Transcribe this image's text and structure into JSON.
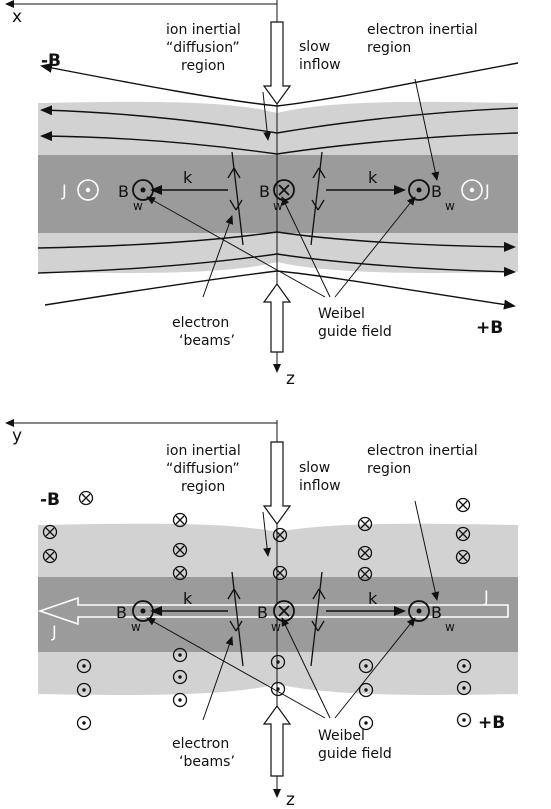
{
  "panel_top": {
    "axis_vertical": "x",
    "axis_down": "z",
    "ion_region": [
      "ion inertial",
      "“diffusion”",
      "region"
    ],
    "inflow": [
      "slow",
      "inflow"
    ],
    "electron_region": [
      "electron inertial",
      "region"
    ],
    "minus_b": "-B",
    "plus_b": "+B",
    "current": "J",
    "wavevector": "k",
    "b_main": "B",
    "b_sub": "w",
    "beams": [
      "electron",
      "‘beams’"
    ],
    "weibel": [
      "Weibel",
      "guide field"
    ]
  },
  "panel_bottom": {
    "axis_vertical": "y",
    "axis_down": "z",
    "ion_region": [
      "ion inertial",
      "“diffusion”",
      "region"
    ],
    "inflow": [
      "slow",
      "inflow"
    ],
    "electron_region": [
      "electron inertial",
      "region"
    ],
    "minus_b": "-B",
    "plus_b": "+B",
    "current": "J",
    "wavevector": "k",
    "b_main": "B",
    "b_sub": "w",
    "beams": [
      "electron",
      "‘beams’"
    ],
    "weibel": [
      "Weibel",
      "guide field"
    ]
  },
  "colors": {
    "light_band": "#d2d2d2",
    "dark_band": "#9b9b9b",
    "line": "#111111",
    "arrow_fill": "#ffffff"
  }
}
